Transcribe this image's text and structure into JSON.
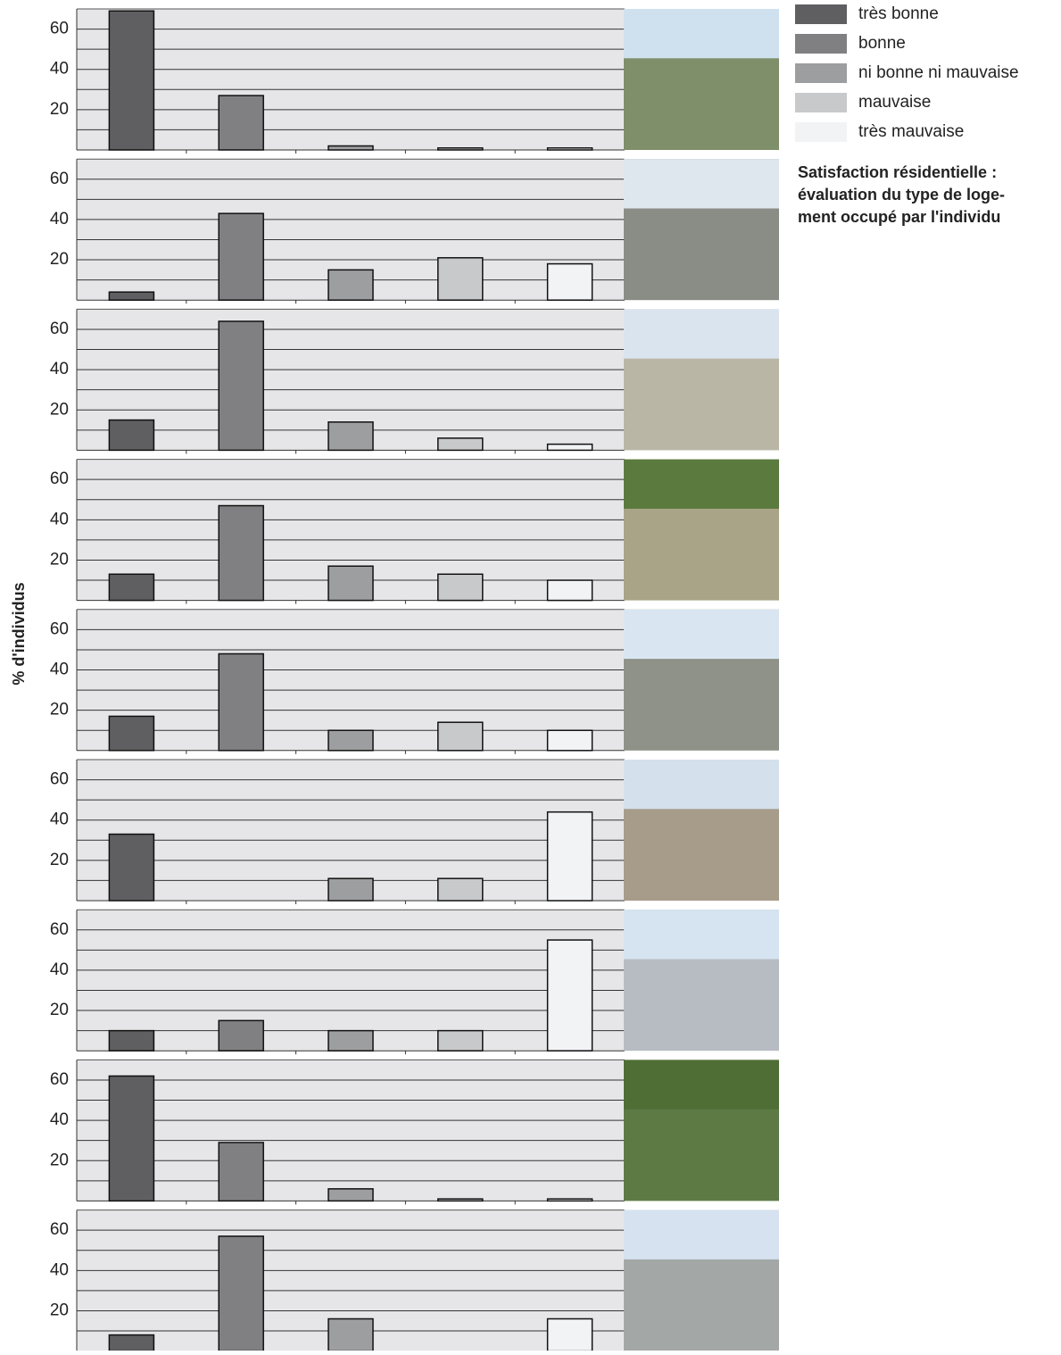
{
  "legend": {
    "labels": [
      "très bonne",
      "bonne",
      "ni bonne ni mauvaise",
      "mauvaise",
      "très mauvaise"
    ],
    "colors": [
      "#5f5f61",
      "#808083",
      "#9d9ea0",
      "#c8c9cb",
      "#f2f3f5"
    ]
  },
  "title_lines": [
    "Satisfaction résidentielle :",
    "évaluation du type de loge-",
    "ment occupé par l'individu"
  ],
  "y_label": "% d'individus",
  "chart_data": [
    {
      "type": "bar",
      "values": [
        69,
        27,
        2,
        1,
        1
      ],
      "ylim": [
        0,
        70
      ],
      "yticks": [
        20,
        40,
        60
      ],
      "minor_yticks": [
        10,
        30,
        50
      ],
      "grid": true
    },
    {
      "type": "bar",
      "values": [
        4,
        43,
        15,
        21,
        18
      ],
      "ylim": [
        0,
        70
      ],
      "yticks": [
        20,
        40,
        60
      ],
      "minor_yticks": [
        10,
        30,
        50
      ],
      "grid": true
    },
    {
      "type": "bar",
      "values": [
        15,
        64,
        14,
        6,
        3
      ],
      "ylim": [
        0,
        70
      ],
      "yticks": [
        20,
        40,
        60
      ],
      "minor_yticks": [
        10,
        30,
        50
      ],
      "grid": true
    },
    {
      "type": "bar",
      "values": [
        13,
        47,
        17,
        13,
        10
      ],
      "ylim": [
        0,
        70
      ],
      "yticks": [
        20,
        40,
        60
      ],
      "minor_yticks": [
        10,
        30,
        50
      ],
      "grid": true
    },
    {
      "type": "bar",
      "values": [
        17,
        48,
        10,
        14,
        10
      ],
      "ylim": [
        0,
        70
      ],
      "yticks": [
        20,
        40,
        60
      ],
      "minor_yticks": [
        10,
        30,
        50
      ],
      "grid": true
    },
    {
      "type": "bar",
      "values": [
        33,
        0,
        11,
        11,
        44
      ],
      "ylim": [
        0,
        70
      ],
      "yticks": [
        20,
        40,
        60
      ],
      "minor_yticks": [
        10,
        30,
        50
      ],
      "grid": true
    },
    {
      "type": "bar",
      "values": [
        10,
        15,
        10,
        10,
        55
      ],
      "ylim": [
        0,
        70
      ],
      "yticks": [
        20,
        40,
        60
      ],
      "minor_yticks": [
        10,
        30,
        50
      ],
      "grid": true
    },
    {
      "type": "bar",
      "values": [
        62,
        29,
        6,
        1,
        1
      ],
      "ylim": [
        0,
        70
      ],
      "yticks": [
        20,
        40,
        60
      ],
      "minor_yticks": [
        10,
        30,
        50
      ],
      "grid": true
    },
    {
      "type": "bar",
      "values": [
        8,
        57,
        16,
        0,
        16
      ],
      "ylim": [
        0,
        70
      ],
      "yticks": [
        20,
        40,
        60
      ],
      "minor_yticks": [
        10,
        30,
        50
      ],
      "grid": true
    }
  ]
}
